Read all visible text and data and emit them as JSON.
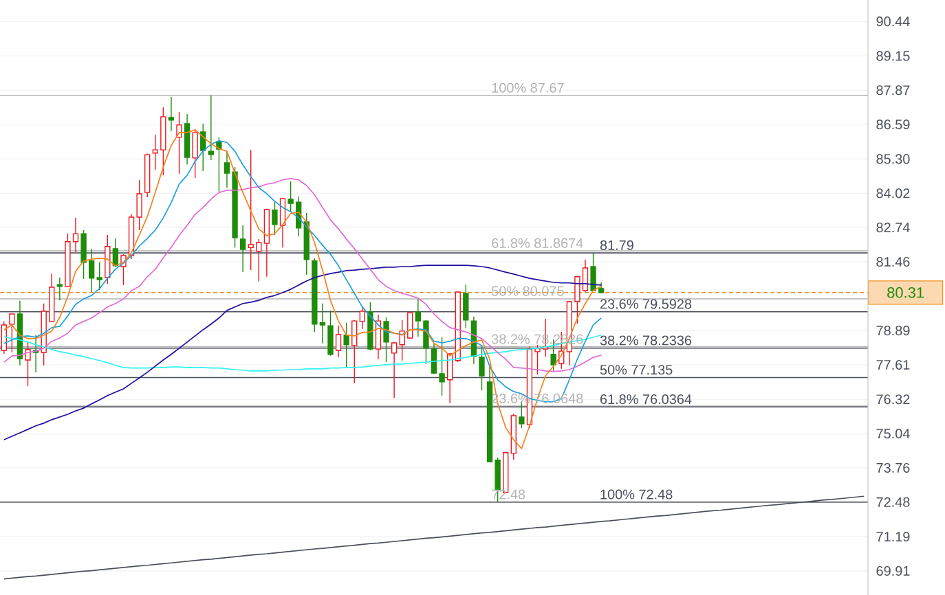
{
  "chart_data": {
    "type": "candlestick",
    "categories": [
      null,
      null,
      null,
      null,
      null,
      null,
      null,
      null,
      null,
      null,
      null,
      null,
      null,
      null,
      null,
      null,
      null,
      null,
      null,
      null,
      null,
      null,
      null,
      null,
      null,
      null,
      null,
      null,
      null,
      null,
      null,
      null,
      null,
      null,
      null,
      null,
      null,
      null,
      null,
      null,
      null,
      null,
      null,
      null,
      null,
      null,
      null,
      null,
      null,
      null,
      null,
      null,
      null,
      null,
      null,
      null,
      null,
      null,
      null,
      null,
      null,
      null,
      null,
      null,
      null,
      null,
      null,
      null,
      null,
      null,
      null,
      null,
      null,
      null,
      null,
      null,
      null,
      null,
      null,
      null,
      null,
      null,
      null,
      null,
      null,
      null,
      null,
      null,
      null,
      null,
      null,
      null,
      null,
      null,
      null,
      null,
      null,
      null,
      null,
      null,
      null,
      null,
      null,
      null,
      null,
      null,
      null,
      null,
      null
    ],
    "ohlc": [
      [
        78.15,
        79.23,
        78.02,
        79.1
      ],
      [
        79.13,
        79.53,
        78.07,
        79.51
      ],
      [
        79.51,
        80.0,
        77.59,
        77.84
      ],
      [
        77.79,
        78.46,
        76.82,
        78.18
      ],
      [
        78.15,
        78.72,
        77.33,
        78.07
      ],
      [
        78.07,
        79.9,
        77.59,
        79.61
      ],
      [
        79.23,
        81.02,
        79.2,
        80.51
      ],
      [
        80.61,
        80.87,
        80.02,
        80.54
      ],
      [
        80.54,
        82.51,
        80.52,
        82.21
      ],
      [
        82.21,
        83.1,
        81.82,
        82.51
      ],
      [
        82.51,
        82.64,
        80.82,
        81.44
      ],
      [
        81.49,
        81.95,
        80.33,
        80.85
      ],
      [
        80.87,
        81.44,
        80.41,
        80.79
      ],
      [
        80.87,
        82.46,
        80.64,
        82.03
      ],
      [
        81.95,
        82.33,
        81.26,
        81.31
      ],
      [
        81.28,
        81.74,
        80.59,
        81.69
      ],
      [
        81.69,
        83.23,
        81.56,
        83.13
      ],
      [
        83.13,
        84.51,
        82.64,
        84.0
      ],
      [
        84.05,
        85.5,
        83.87,
        85.46
      ],
      [
        85.52,
        86.21,
        84.9,
        85.64
      ],
      [
        85.64,
        87.23,
        84.69,
        86.88
      ],
      [
        86.85,
        87.62,
        86.34,
        86.75
      ],
      [
        86.11,
        87.05,
        84.75,
        86.57
      ],
      [
        86.62,
        86.98,
        85.1,
        85.36
      ],
      [
        85.34,
        86.41,
        84.59,
        86.29
      ],
      [
        86.31,
        86.62,
        84.85,
        85.62
      ],
      [
        85.59,
        87.67,
        85.26,
        85.46
      ],
      [
        85.95,
        86.11,
        84.08,
        85.67
      ],
      [
        85.16,
        85.59,
        84.23,
        84.77
      ],
      [
        84.82,
        85.0,
        81.99,
        82.36
      ],
      [
        82.31,
        82.82,
        81.08,
        81.92
      ],
      [
        81.99,
        85.64,
        81.15,
        82.1
      ],
      [
        81.85,
        82.31,
        80.72,
        82.18
      ],
      [
        82.15,
        83.44,
        80.9,
        83.41
      ],
      [
        83.39,
        83.69,
        82.46,
        82.85
      ],
      [
        82.82,
        83.85,
        81.99,
        83.82
      ],
      [
        83.8,
        84.46,
        83.33,
        83.64
      ],
      [
        83.69,
        83.9,
        82.41,
        82.72
      ],
      [
        82.95,
        83.28,
        80.97,
        81.54
      ],
      [
        81.49,
        81.59,
        78.84,
        79.13
      ],
      [
        79.18,
        79.9,
        78.41,
        79.1
      ],
      [
        79.07,
        79.64,
        77.95,
        78.0
      ],
      [
        78.15,
        79.07,
        77.89,
        78.74
      ],
      [
        78.72,
        79.18,
        77.53,
        78.36
      ],
      [
        78.33,
        79.28,
        76.92,
        79.25
      ],
      [
        79.23,
        79.79,
        78.95,
        79.61
      ],
      [
        79.59,
        79.95,
        78.15,
        78.2
      ],
      [
        78.2,
        79.48,
        77.82,
        79.25
      ],
      [
        79.23,
        79.38,
        77.71,
        78.46
      ],
      [
        78.05,
        78.46,
        76.38,
        78.43
      ],
      [
        78.36,
        79.28,
        77.77,
        78.87
      ],
      [
        78.61,
        79.61,
        78.59,
        79.56
      ],
      [
        79.59,
        80.07,
        78.66,
        79.25
      ],
      [
        79.25,
        79.28,
        77.64,
        78.23
      ],
      [
        78.2,
        78.41,
        77.28,
        77.3
      ],
      [
        77.28,
        78.64,
        76.46,
        76.97
      ],
      [
        77.05,
        78.05,
        76.17,
        78.02
      ],
      [
        77.77,
        80.33,
        77.71,
        80.33
      ],
      [
        80.28,
        80.61,
        78.99,
        79.28
      ],
      [
        79.25,
        79.41,
        77.64,
        77.92
      ],
      [
        77.89,
        78.28,
        76.66,
        77.2
      ],
      [
        76.97,
        77.53,
        73.97,
        73.99
      ],
      [
        74.05,
        74.15,
        72.48,
        72.94
      ],
      [
        72.84,
        74.35,
        72.82,
        74.33
      ],
      [
        74.3,
        75.79,
        74.07,
        75.71
      ],
      [
        75.66,
        76.25,
        75.25,
        75.41
      ],
      [
        75.38,
        78.28,
        75.25,
        78.2
      ],
      [
        78.1,
        78.36,
        77.25,
        78.23
      ],
      [
        78.2,
        79.33,
        77.92,
        78.28
      ],
      [
        78.0,
        78.56,
        77.38,
        77.61
      ],
      [
        77.66,
        78.84,
        77.46,
        78.12
      ],
      [
        78.1,
        80.0,
        77.59,
        79.97
      ],
      [
        79.97,
        80.9,
        79.15,
        80.9
      ],
      [
        80.38,
        81.54,
        80.33,
        81.23
      ],
      [
        81.28,
        81.79,
        80.38,
        80.38
      ],
      [
        80.46,
        80.69,
        80.28,
        80.31
      ],
      null,
      null,
      null,
      null,
      null,
      null,
      null,
      null,
      null,
      null,
      null,
      null,
      null,
      null,
      null,
      null,
      null,
      null,
      null,
      null,
      null,
      null,
      null,
      null,
      null,
      null,
      null,
      null,
      null,
      null,
      null,
      null,
      null
    ],
    "colors": [
      "#e8191f",
      "#e8191f",
      "#1e8c0a",
      "#e8191f",
      "#1e8c0a",
      "#e8191f",
      "#e8191f",
      "#1e8c0a",
      "#e8191f",
      "#e8191f",
      "#1e8c0a",
      "#1e8c0a",
      "#1e8c0a",
      "#e8191f",
      "#1e8c0a",
      "#e8191f",
      "#e8191f",
      "#e8191f",
      "#e8191f",
      "#e8191f",
      "#e8191f",
      "#1e8c0a",
      "#e8191f",
      "#1e8c0a",
      "#e8191f",
      "#1e8c0a",
      "#1e8c0a",
      "#1e8c0a",
      "#1e8c0a",
      "#1e8c0a",
      "#1e8c0a",
      "#e8191f",
      "#e8191f",
      "#e8191f",
      "#1e8c0a",
      "#e8191f",
      "#1e8c0a",
      "#1e8c0a",
      "#1e8c0a",
      "#1e8c0a",
      "#1e8c0a",
      "#1e8c0a",
      "#e8191f",
      "#1e8c0a",
      "#e8191f",
      "#e8191f",
      "#1e8c0a",
      "#e8191f",
      "#1e8c0a",
      "#e8191f",
      "#e8191f",
      "#e8191f",
      "#1e8c0a",
      "#1e8c0a",
      "#1e8c0a",
      "#1e8c0a",
      "#e8191f",
      "#e8191f",
      "#1e8c0a",
      "#1e8c0a",
      "#1e8c0a",
      "#1e8c0a",
      "#1e8c0a",
      "#e8191f",
      "#e8191f",
      "#1e8c0a",
      "#e8191f",
      "#e8191f",
      "#e8191f",
      "#1e8c0a",
      "#e8191f",
      "#e8191f",
      "#e8191f",
      "#e8191f",
      "#1e8c0a",
      "#1e8c0a",
      null,
      null,
      null,
      null,
      null,
      null,
      null,
      null,
      null,
      null,
      null,
      null,
      null,
      null,
      null,
      null,
      null,
      null,
      null,
      null,
      null,
      null,
      null,
      null,
      null,
      null,
      null,
      null,
      null,
      null,
      null,
      null,
      null
    ],
    "series": [
      {
        "type": "line",
        "color": "#2ff2f2",
        "values": [
          78.66,
          78.59,
          78.54,
          78.46,
          78.36,
          78.28,
          78.18,
          78.1,
          78.05,
          77.97,
          77.92,
          77.84,
          77.77,
          77.69,
          77.59,
          77.51,
          77.49,
          77.49,
          77.49,
          77.51,
          77.51,
          77.53,
          77.53,
          77.51,
          77.51,
          77.51,
          77.49,
          77.49,
          77.46,
          77.43,
          77.41,
          77.38,
          77.38,
          77.38,
          77.41,
          77.41,
          77.43,
          77.43,
          77.46,
          77.46,
          77.46,
          77.49,
          77.49,
          77.51,
          77.51,
          77.53,
          77.56,
          77.59,
          77.61,
          77.64,
          77.64,
          77.66,
          77.69,
          77.71,
          77.74,
          77.77,
          77.79,
          77.84,
          77.89,
          77.94,
          78.0,
          78.05,
          78.07,
          78.1,
          78.15,
          78.18,
          78.2,
          78.23,
          78.28,
          78.33,
          78.41,
          78.46,
          78.51,
          78.56,
          78.64,
          78.72,
          null,
          null,
          null,
          null,
          null,
          null,
          null,
          null,
          null,
          null,
          null,
          null,
          null,
          null,
          null,
          null,
          null,
          null,
          null,
          null,
          null,
          null,
          null,
          null,
          null,
          null,
          null,
          null,
          null,
          null,
          null,
          null,
          null
        ]
      },
      {
        "type": "line",
        "color": "#1e0fa0",
        "values": [
          74.81,
          74.94,
          75.07,
          75.2,
          75.33,
          75.43,
          75.56,
          75.66,
          75.76,
          75.89,
          75.99,
          76.15,
          76.3,
          76.46,
          76.59,
          76.71,
          76.92,
          77.12,
          77.33,
          77.56,
          77.79,
          78.0,
          78.23,
          78.46,
          78.69,
          78.92,
          79.13,
          79.36,
          79.64,
          79.77,
          79.9,
          79.95,
          80.02,
          80.13,
          80.2,
          80.31,
          80.43,
          80.59,
          80.74,
          80.87,
          80.95,
          81.02,
          81.07,
          81.13,
          81.15,
          81.18,
          81.2,
          81.23,
          81.26,
          81.26,
          81.28,
          81.28,
          81.31,
          81.33,
          81.33,
          81.33,
          81.33,
          81.33,
          81.33,
          81.31,
          81.28,
          81.23,
          81.15,
          81.07,
          81.0,
          80.92,
          80.84,
          80.79,
          80.74,
          80.69,
          80.67,
          80.67,
          80.64,
          80.64,
          80.61,
          80.59,
          null,
          null,
          null,
          null,
          null,
          null,
          null,
          null,
          null,
          null,
          null,
          null,
          null,
          null,
          null,
          null,
          null,
          null,
          null,
          null,
          null,
          null,
          null,
          null,
          null,
          null,
          null,
          null,
          null,
          null,
          null,
          null,
          null
        ]
      },
      {
        "type": "line",
        "color": "#e36ad8",
        "values": [
          77.71,
          77.94,
          77.97,
          78.07,
          78.12,
          78.23,
          78.49,
          78.61,
          78.79,
          79.1,
          79.23,
          79.36,
          79.56,
          79.77,
          79.9,
          80.07,
          80.38,
          80.54,
          80.9,
          81.18,
          81.61,
          82.0,
          82.44,
          82.82,
          83.23,
          83.49,
          83.8,
          84.05,
          84.13,
          84.13,
          84.16,
          84.23,
          84.26,
          84.36,
          84.41,
          84.52,
          84.57,
          84.52,
          84.31,
          83.97,
          83.49,
          83.03,
          82.69,
          82.31,
          81.95,
          81.56,
          81.18,
          80.79,
          80.54,
          80.38,
          80.28,
          80.2,
          80.1,
          79.87,
          79.51,
          79.23,
          79.0,
          78.92,
          78.84,
          78.72,
          78.59,
          78.33,
          78.07,
          77.82,
          77.51,
          77.49,
          77.46,
          77.43,
          77.38,
          77.36,
          77.38,
          77.43,
          77.56,
          77.71,
          77.89,
          77.97,
          null,
          null,
          null,
          null,
          null,
          null,
          null,
          null,
          null,
          null,
          null,
          null,
          null,
          null,
          null,
          null,
          null,
          null,
          null,
          null,
          null,
          null,
          null,
          null,
          null,
          null,
          null,
          null,
          null,
          null,
          null,
          null,
          null
        ]
      },
      {
        "type": "line",
        "color": "#1ea0dc",
        "values": [
          78.41,
          78.54,
          78.66,
          78.69,
          78.64,
          78.79,
          79.0,
          79.05,
          79.43,
          79.87,
          80.07,
          80.2,
          80.46,
          80.84,
          81.18,
          81.41,
          81.69,
          82.05,
          82.33,
          82.64,
          83.1,
          83.67,
          84.36,
          84.69,
          85.21,
          85.59,
          85.85,
          85.98,
          85.92,
          85.59,
          85.08,
          84.64,
          84.23,
          84.0,
          83.72,
          83.49,
          83.33,
          83.1,
          82.77,
          82.44,
          82.08,
          81.74,
          81.31,
          80.79,
          80.28,
          79.77,
          79.43,
          79.1,
          78.84,
          78.79,
          78.74,
          78.92,
          78.95,
          78.92,
          78.49,
          78.43,
          78.49,
          78.59,
          78.59,
          78.49,
          78.33,
          77.56,
          77.05,
          76.79,
          76.61,
          76.53,
          76.35,
          76.28,
          76.23,
          76.23,
          76.35,
          77.05,
          77.82,
          78.49,
          79.1,
          79.36,
          null,
          null,
          null,
          null,
          null,
          null,
          null,
          null,
          null,
          null,
          null,
          null,
          null,
          null,
          null,
          null,
          null,
          null,
          null,
          null,
          null,
          null,
          null,
          null,
          null,
          null,
          null,
          null,
          null,
          null,
          null,
          null,
          null
        ]
      },
      {
        "type": "line",
        "color": "#f5821f",
        "values": [
          78.92,
          79.1,
          78.72,
          78.59,
          78.59,
          78.72,
          78.87,
          79.38,
          80.15,
          81.1,
          81.49,
          81.56,
          81.59,
          81.56,
          81.31,
          81.44,
          81.79,
          82.46,
          83.15,
          84.05,
          85.0,
          85.8,
          86.29,
          86.29,
          86.39,
          86.13,
          85.87,
          85.69,
          85.59,
          84.77,
          84.05,
          83.36,
          82.69,
          82.44,
          82.51,
          82.85,
          83.26,
          83.31,
          82.95,
          82.18,
          81.15,
          80.02,
          79.25,
          78.72,
          78.69,
          78.82,
          78.84,
          78.97,
          78.92,
          78.79,
          78.72,
          78.92,
          78.92,
          78.87,
          78.41,
          78.23,
          77.95,
          78.15,
          78.33,
          78.46,
          78.54,
          77.82,
          76.17,
          75.27,
          74.81,
          74.48,
          75.33,
          76.35,
          77.2,
          77.56,
          77.97,
          78.59,
          79.36,
          79.9,
          80.39,
          80.54,
          null,
          null,
          null,
          null,
          null,
          null,
          null,
          null,
          null,
          null,
          null,
          null,
          null,
          null,
          null,
          null,
          null,
          null,
          null,
          null,
          null,
          null,
          null,
          null,
          null,
          null,
          null,
          null,
          null,
          null,
          null,
          null,
          null
        ]
      },
      {
        "type": "line",
        "color": "#4a4f5c",
        "values": [
          69.61,
          69.64,
          69.67,
          69.7,
          69.72,
          69.75,
          69.78,
          69.81,
          69.84,
          69.87,
          69.9,
          69.92,
          69.95,
          69.98,
          70.01,
          70.04,
          70.07,
          70.1,
          70.12,
          70.15,
          70.18,
          70.21,
          70.24,
          70.27,
          70.3,
          70.33,
          70.35,
          70.38,
          70.41,
          70.44,
          70.47,
          70.5,
          70.53,
          70.55,
          70.58,
          70.61,
          70.64,
          70.67,
          70.7,
          70.73,
          70.75,
          70.78,
          70.81,
          70.84,
          70.87,
          70.9,
          70.93,
          70.95,
          70.98,
          71.01,
          71.04,
          71.07,
          71.1,
          71.13,
          71.15,
          71.18,
          71.21,
          71.24,
          71.27,
          71.3,
          71.33,
          71.35,
          71.38,
          71.41,
          71.44,
          71.47,
          71.5,
          71.53,
          71.55,
          71.58,
          71.61,
          71.64,
          71.67,
          71.7,
          71.73,
          71.76,
          71.78,
          71.81,
          71.84,
          71.87,
          71.9,
          71.93,
          71.96,
          71.98,
          72.01,
          72.04,
          72.07,
          72.1,
          72.13,
          72.16,
          72.18,
          72.21,
          72.24,
          72.27,
          72.3,
          72.33,
          72.36,
          72.38,
          72.41,
          72.44,
          72.47,
          72.5,
          72.53,
          72.56,
          72.58,
          72.61,
          72.64,
          72.67,
          72.7
        ]
      }
    ],
    "ref_lines": [
      {
        "axis": "y",
        "value": 87.67,
        "label": "100% 87.67",
        "color": "#b3b3b3"
      },
      {
        "axis": "y",
        "value": 81.8674,
        "label": "61.8% 81.8674",
        "color": "#b3b3b3"
      },
      {
        "axis": "y",
        "value": 80.075,
        "label": "50% 80.075",
        "color": "#b3b3b3"
      },
      {
        "axis": "y",
        "value": 78.2826,
        "label": "38.2% 78.2826",
        "color": "#b3b3b3"
      },
      {
        "axis": "y",
        "value": 76.0648,
        "label": "23.6% 76.0648",
        "color": "#b3b3b3"
      },
      {
        "axis": "y",
        "value": 72.48,
        "label": "72.48",
        "color": "#b3b3b3"
      },
      {
        "axis": "y",
        "value": 81.79,
        "label": "81.79",
        "color": "#4a4f5c"
      },
      {
        "axis": "y",
        "value": 79.5928,
        "label": "23.6% 79.5928",
        "color": "#4a4f5c"
      },
      {
        "axis": "y",
        "value": 78.2336,
        "label": "38.2% 78.2336",
        "color": "#4a4f5c"
      },
      {
        "axis": "y",
        "value": 77.135,
        "label": "50% 77.135",
        "color": "#4a4f5c"
      },
      {
        "axis": "y",
        "value": 76.0364,
        "label": "61.8% 76.0364",
        "color": "#4a4f5c"
      },
      {
        "axis": "y",
        "value": 72.48,
        "label": "100% 72.48",
        "color": "#4a4f5c"
      },
      {
        "axis": "y",
        "value": 80.31,
        "label": "80.31",
        "color": "#f0901e",
        "line_style": "dashed"
      }
    ],
    "ylim": [
      69.01,
      91.24
    ],
    "yticks": [
      69.91,
      71.19,
      72.48,
      73.76,
      75.04,
      76.32,
      77.61,
      78.89,
      81.46,
      82.74,
      84.02,
      {
        "value": 85.3,
        "label": "85.30"
      },
      86.59,
      87.87,
      89.15,
      90.44
    ],
    "grid": "y"
  }
}
